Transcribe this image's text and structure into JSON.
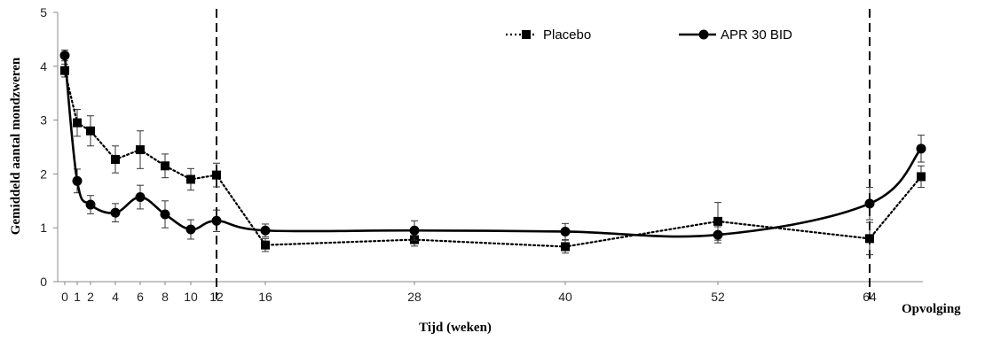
{
  "chart_data": {
    "type": "line",
    "ylabel": "Gemiddeld aantal mondzweren",
    "xlabel": "Tijd (weken)",
    "x_ticks": [
      "0",
      "1",
      "2",
      "4",
      "6",
      "8",
      "10",
      "12",
      "16",
      "28",
      "40",
      "52",
      "64",
      "Opvolging"
    ],
    "y_ticks": [
      "0",
      "1",
      "2",
      "3",
      "4",
      "5"
    ],
    "ylim": [
      0,
      5
    ],
    "grid": false,
    "legend_position": "top-right",
    "reference_lines_x": [
      "12",
      "64"
    ],
    "x_categories": [
      "0",
      "1",
      "2",
      "4",
      "6",
      "8",
      "10",
      "12",
      "16",
      "28",
      "40",
      "52",
      "64",
      "Opvolging"
    ],
    "series": [
      {
        "name": "Placebo",
        "style": "dotted",
        "marker": "square",
        "values": [
          3.92,
          2.95,
          2.8,
          2.27,
          2.45,
          2.15,
          1.9,
          1.98,
          0.68,
          0.78,
          0.65,
          1.12,
          0.8,
          1.95
        ],
        "error": [
          0.12,
          0.25,
          0.28,
          0.25,
          0.35,
          0.22,
          0.2,
          0.22,
          0.12,
          0.12,
          0.12,
          0.35,
          0.3,
          0.2
        ]
      },
      {
        "name": "APR 30 BID",
        "style": "solid",
        "marker": "circle",
        "values": [
          4.2,
          1.87,
          1.43,
          1.28,
          1.57,
          1.25,
          0.97,
          1.13,
          0.95,
          0.95,
          0.93,
          0.87,
          1.45,
          2.47
        ],
        "error": [
          0.1,
          0.22,
          0.17,
          0.17,
          0.22,
          0.25,
          0.18,
          0.2,
          0.12,
          0.18,
          0.15,
          0.15,
          0.3,
          0.25
        ]
      }
    ]
  }
}
